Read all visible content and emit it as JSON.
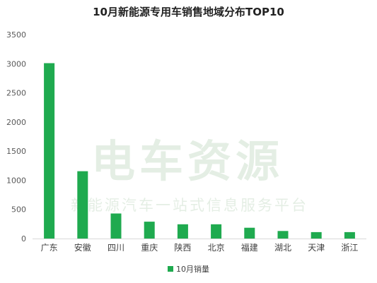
{
  "watermark": {
    "main_text": "电车资源",
    "sub_text": "新能源汽车一站式信息服务平台"
  },
  "chart_data": {
    "type": "bar",
    "title": "10月新能源专用车销售地域分布TOP10",
    "categories": [
      "广东",
      "安徽",
      "四川",
      "重庆",
      "陕西",
      "北京",
      "福建",
      "湖北",
      "天津",
      "浙江"
    ],
    "series": [
      {
        "name": "10月销量",
        "values": [
          3010,
          1155,
          430,
          290,
          245,
          245,
          185,
          130,
          110,
          110
        ],
        "color": "#1faa4f"
      }
    ],
    "xlabel": "",
    "ylabel": "",
    "ylim": [
      0,
      3500
    ],
    "yticks": [
      0,
      500,
      1000,
      1500,
      2000,
      2500,
      3000,
      3500
    ],
    "grid": false,
    "legend_position": "bottom"
  }
}
